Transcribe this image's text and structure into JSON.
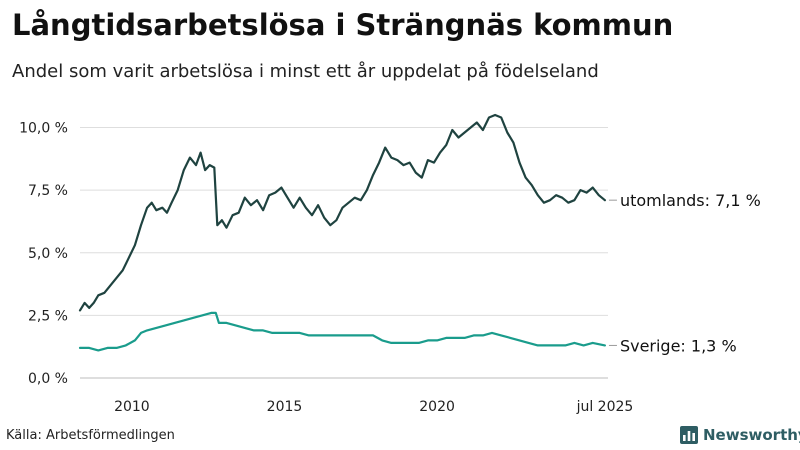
{
  "title": "Långtidsarbetslösa i Strängnäs kommun",
  "subtitle": "Andel som varit arbetslösa i minst ett år uppdelat på födelseland",
  "source": "Källa: Arbetsförmedlingen",
  "brand": {
    "name": "Newsworthy",
    "icon": "bar-chart-icon",
    "color": "#2e5d63"
  },
  "chart_data": {
    "type": "line",
    "xlim": [
      2008.3,
      2025.6
    ],
    "ylim": [
      0,
      10.5
    ],
    "grid": true,
    "y_ticks": [
      {
        "value": 0,
        "label": "0,0 %"
      },
      {
        "value": 2.5,
        "label": "2,5 %"
      },
      {
        "value": 5,
        "label": "5,0 %"
      },
      {
        "value": 7.5,
        "label": "7,5 %"
      },
      {
        "value": 10,
        "label": "10,0 %"
      }
    ],
    "x_ticks": [
      {
        "value": 2010,
        "label": "2010"
      },
      {
        "value": 2015,
        "label": "2015"
      },
      {
        "value": 2020,
        "label": "2020"
      },
      {
        "value": 2025.5,
        "label": "jul 2025"
      }
    ],
    "series": [
      {
        "name": "utomlands",
        "end_label": "utomlands: 7,1 %",
        "color": "#1f4340",
        "points": [
          [
            2008.3,
            2.7
          ],
          [
            2008.45,
            3.0
          ],
          [
            2008.6,
            2.8
          ],
          [
            2008.75,
            3.0
          ],
          [
            2008.9,
            3.3
          ],
          [
            2009.1,
            3.4
          ],
          [
            2009.3,
            3.7
          ],
          [
            2009.5,
            4.0
          ],
          [
            2009.7,
            4.3
          ],
          [
            2009.9,
            4.8
          ],
          [
            2010.1,
            5.3
          ],
          [
            2010.3,
            6.1
          ],
          [
            2010.5,
            6.8
          ],
          [
            2010.65,
            7.0
          ],
          [
            2010.8,
            6.7
          ],
          [
            2011.0,
            6.8
          ],
          [
            2011.15,
            6.6
          ],
          [
            2011.3,
            7.0
          ],
          [
            2011.5,
            7.5
          ],
          [
            2011.7,
            8.3
          ],
          [
            2011.9,
            8.8
          ],
          [
            2012.1,
            8.5
          ],
          [
            2012.25,
            9.0
          ],
          [
            2012.4,
            8.3
          ],
          [
            2012.55,
            8.5
          ],
          [
            2012.7,
            8.4
          ],
          [
            2012.8,
            6.1
          ],
          [
            2012.95,
            6.3
          ],
          [
            2013.1,
            6.0
          ],
          [
            2013.3,
            6.5
          ],
          [
            2013.5,
            6.6
          ],
          [
            2013.7,
            7.2
          ],
          [
            2013.9,
            6.9
          ],
          [
            2014.1,
            7.1
          ],
          [
            2014.3,
            6.7
          ],
          [
            2014.5,
            7.3
          ],
          [
            2014.7,
            7.4
          ],
          [
            2014.9,
            7.6
          ],
          [
            2015.1,
            7.2
          ],
          [
            2015.3,
            6.8
          ],
          [
            2015.5,
            7.2
          ],
          [
            2015.7,
            6.8
          ],
          [
            2015.9,
            6.5
          ],
          [
            2016.1,
            6.9
          ],
          [
            2016.3,
            6.4
          ],
          [
            2016.5,
            6.1
          ],
          [
            2016.7,
            6.3
          ],
          [
            2016.9,
            6.8
          ],
          [
            2017.1,
            7.0
          ],
          [
            2017.3,
            7.2
          ],
          [
            2017.5,
            7.1
          ],
          [
            2017.7,
            7.5
          ],
          [
            2017.9,
            8.1
          ],
          [
            2018.1,
            8.6
          ],
          [
            2018.3,
            9.2
          ],
          [
            2018.5,
            8.8
          ],
          [
            2018.7,
            8.7
          ],
          [
            2018.9,
            8.5
          ],
          [
            2019.1,
            8.6
          ],
          [
            2019.3,
            8.2
          ],
          [
            2019.5,
            8.0
          ],
          [
            2019.7,
            8.7
          ],
          [
            2019.9,
            8.6
          ],
          [
            2020.1,
            9.0
          ],
          [
            2020.3,
            9.3
          ],
          [
            2020.5,
            9.9
          ],
          [
            2020.7,
            9.6
          ],
          [
            2020.9,
            9.8
          ],
          [
            2021.1,
            10.0
          ],
          [
            2021.3,
            10.2
          ],
          [
            2021.5,
            9.9
          ],
          [
            2021.7,
            10.4
          ],
          [
            2021.9,
            10.5
          ],
          [
            2022.1,
            10.4
          ],
          [
            2022.3,
            9.8
          ],
          [
            2022.5,
            9.4
          ],
          [
            2022.7,
            8.6
          ],
          [
            2022.9,
            8.0
          ],
          [
            2023.1,
            7.7
          ],
          [
            2023.3,
            7.3
          ],
          [
            2023.5,
            7.0
          ],
          [
            2023.7,
            7.1
          ],
          [
            2023.9,
            7.3
          ],
          [
            2024.1,
            7.2
          ],
          [
            2024.3,
            7.0
          ],
          [
            2024.5,
            7.1
          ],
          [
            2024.7,
            7.5
          ],
          [
            2024.9,
            7.4
          ],
          [
            2025.1,
            7.6
          ],
          [
            2025.3,
            7.3
          ],
          [
            2025.5,
            7.1
          ]
        ]
      },
      {
        "name": "Sverige",
        "end_label": "Sverige: 1,3 %",
        "color": "#1a9c8c",
        "points": [
          [
            2008.3,
            1.2
          ],
          [
            2008.6,
            1.2
          ],
          [
            2008.9,
            1.1
          ],
          [
            2009.2,
            1.2
          ],
          [
            2009.5,
            1.2
          ],
          [
            2009.8,
            1.3
          ],
          [
            2010.1,
            1.5
          ],
          [
            2010.3,
            1.8
          ],
          [
            2010.5,
            1.9
          ],
          [
            2010.8,
            2.0
          ],
          [
            2011.1,
            2.1
          ],
          [
            2011.4,
            2.2
          ],
          [
            2011.7,
            2.3
          ],
          [
            2012.0,
            2.4
          ],
          [
            2012.3,
            2.5
          ],
          [
            2012.6,
            2.6
          ],
          [
            2012.75,
            2.6
          ],
          [
            2012.85,
            2.2
          ],
          [
            2013.1,
            2.2
          ],
          [
            2013.4,
            2.1
          ],
          [
            2013.7,
            2.0
          ],
          [
            2014.0,
            1.9
          ],
          [
            2014.3,
            1.9
          ],
          [
            2014.6,
            1.8
          ],
          [
            2014.9,
            1.8
          ],
          [
            2015.2,
            1.8
          ],
          [
            2015.5,
            1.8
          ],
          [
            2015.8,
            1.7
          ],
          [
            2016.1,
            1.7
          ],
          [
            2016.4,
            1.7
          ],
          [
            2016.7,
            1.7
          ],
          [
            2017.0,
            1.7
          ],
          [
            2017.3,
            1.7
          ],
          [
            2017.6,
            1.7
          ],
          [
            2017.9,
            1.7
          ],
          [
            2018.2,
            1.5
          ],
          [
            2018.5,
            1.4
          ],
          [
            2018.8,
            1.4
          ],
          [
            2019.1,
            1.4
          ],
          [
            2019.4,
            1.4
          ],
          [
            2019.7,
            1.5
          ],
          [
            2020.0,
            1.5
          ],
          [
            2020.3,
            1.6
          ],
          [
            2020.6,
            1.6
          ],
          [
            2020.9,
            1.6
          ],
          [
            2021.2,
            1.7
          ],
          [
            2021.5,
            1.7
          ],
          [
            2021.8,
            1.8
          ],
          [
            2022.1,
            1.7
          ],
          [
            2022.4,
            1.6
          ],
          [
            2022.7,
            1.5
          ],
          [
            2023.0,
            1.4
          ],
          [
            2023.3,
            1.3
          ],
          [
            2023.6,
            1.3
          ],
          [
            2023.9,
            1.3
          ],
          [
            2024.2,
            1.3
          ],
          [
            2024.5,
            1.4
          ],
          [
            2024.8,
            1.3
          ],
          [
            2025.1,
            1.4
          ],
          [
            2025.5,
            1.3
          ]
        ]
      }
    ]
  }
}
